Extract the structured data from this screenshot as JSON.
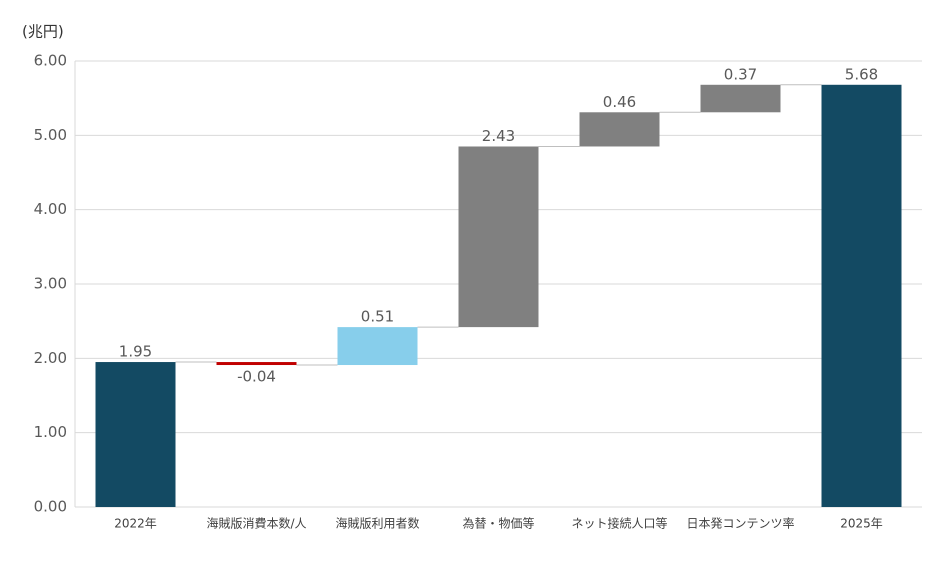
{
  "chart_data": {
    "type": "waterfall",
    "y_label": "(兆円)",
    "categories": [
      "2022年",
      "海賊版消費本数/人",
      "海賊版利用者数",
      "為替・物価等",
      "ネット接続人口等",
      "日本発コンテンツ率",
      "2025年"
    ],
    "values": [
      1.95,
      -0.04,
      0.51,
      2.43,
      0.46,
      0.37,
      5.68
    ],
    "measures": [
      "total",
      "relative",
      "relative",
      "relative",
      "relative",
      "relative",
      "total"
    ],
    "colors": [
      "#134a63",
      "#c00000",
      "#87ceeb",
      "#808080",
      "#808080",
      "#808080",
      "#134a63"
    ],
    "ylim": [
      0,
      6
    ],
    "yticks": [
      {
        "value": 0,
        "label": "0.00"
      },
      {
        "value": 1,
        "label": "1.00"
      },
      {
        "value": 2,
        "label": "2.00"
      },
      {
        "value": 3,
        "label": "3.00"
      },
      {
        "value": 4,
        "label": "4.00"
      },
      {
        "value": 5,
        "label": "5.00"
      },
      {
        "value": 6,
        "label": "6.00"
      }
    ],
    "grid": true
  }
}
